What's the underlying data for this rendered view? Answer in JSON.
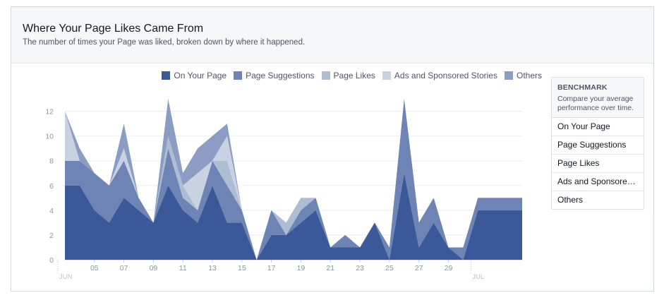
{
  "header": {
    "title": "Where Your Page Likes Came From",
    "subtitle": "The number of times your Page was liked, broken down by where it happened."
  },
  "legend": [
    {
      "label": "On Your Page",
      "color": "#3b5998"
    },
    {
      "label": "Page Suggestions",
      "color": "#6d84b4"
    },
    {
      "label": "Page Likes",
      "color": "#afbdd4"
    },
    {
      "label": "Ads and Sponsored Stories",
      "color": "#c9d2e3"
    },
    {
      "label": "Others",
      "color": "#8b9dc3"
    }
  ],
  "benchmark": {
    "title": "BENCHMARK",
    "description": "Compare your average performance over time.",
    "items": [
      "On Your Page",
      "Page Suggestions",
      "Page Likes",
      "Ads and Sponsored Stories",
      "Others"
    ]
  },
  "chart_data": {
    "type": "area",
    "stacked": true,
    "x": [
      "Jun 3",
      "Jun 4",
      "Jun 5",
      "Jun 6",
      "Jun 7",
      "Jun 8",
      "Jun 9",
      "Jun 10",
      "Jun 11",
      "Jun 12",
      "Jun 13",
      "Jun 14",
      "Jun 15",
      "Jun 16",
      "Jun 17",
      "Jun 18",
      "Jun 19",
      "Jun 20",
      "Jun 21",
      "Jun 22",
      "Jun 23",
      "Jun 24",
      "Jun 25",
      "Jun 26",
      "Jun 27",
      "Jun 28",
      "Jun 29",
      "Jun 30",
      "Jul 1",
      "Jul 2",
      "Jul 3",
      "Jul 4"
    ],
    "x_tick_labels": [
      {
        "label": "05",
        "index": 2
      },
      {
        "label": "07",
        "index": 4
      },
      {
        "label": "09",
        "index": 6
      },
      {
        "label": "11",
        "index": 8
      },
      {
        "label": "13",
        "index": 10
      },
      {
        "label": "15",
        "index": 12
      },
      {
        "label": "17",
        "index": 14
      },
      {
        "label": "19",
        "index": 16
      },
      {
        "label": "21",
        "index": 18
      },
      {
        "label": "23",
        "index": 20
      },
      {
        "label": "25",
        "index": 22
      },
      {
        "label": "27",
        "index": 24
      },
      {
        "label": "29",
        "index": 26
      }
    ],
    "month_labels": [
      {
        "label": "JUN",
        "index": 0
      },
      {
        "label": "JUL",
        "index": 28
      }
    ],
    "y_ticks": [
      0,
      2,
      4,
      6,
      8,
      10,
      12
    ],
    "ylim": [
      0,
      13
    ],
    "grid": true,
    "legend_position": "top-right",
    "series": [
      {
        "name": "On Your Page",
        "values": [
          6,
          6,
          4,
          3,
          5,
          4,
          3,
          6,
          4,
          3,
          6,
          3,
          3,
          0,
          2,
          2,
          3,
          4,
          1,
          1,
          1,
          3,
          0,
          7,
          1,
          3,
          1,
          0,
          4,
          4,
          4,
          4
        ]
      },
      {
        "name": "Page Suggestions",
        "values": [
          2,
          2,
          3,
          3,
          3,
          1,
          0,
          3,
          1,
          1,
          2,
          3,
          1,
          0,
          2,
          0,
          1,
          1,
          0,
          1,
          0,
          0,
          1,
          6,
          2,
          2,
          0,
          1,
          1,
          1,
          1,
          1
        ]
      },
      {
        "name": "Page Likes",
        "values": [
          0,
          0,
          0,
          0,
          0,
          0,
          0,
          1,
          1,
          0,
          0,
          2,
          0,
          0,
          0,
          1,
          1,
          0,
          0,
          0,
          0,
          0,
          0,
          0,
          0,
          0,
          0,
          0,
          0,
          0,
          0,
          0
        ]
      },
      {
        "name": "Ads and Sponsored Stories",
        "values": [
          4,
          0,
          0,
          0,
          1,
          0,
          0,
          0,
          0,
          3,
          0,
          2,
          0,
          0,
          0,
          0,
          0,
          0,
          0,
          0,
          0,
          0,
          0,
          0,
          0,
          0,
          0,
          0,
          0,
          0,
          0,
          0
        ]
      },
      {
        "name": "Others",
        "values": [
          0,
          1,
          0,
          0,
          2,
          0,
          0,
          3,
          1,
          2,
          2,
          1,
          0,
          0,
          0,
          0,
          0,
          0,
          0,
          0,
          0,
          0,
          0,
          0,
          0,
          0,
          0,
          0,
          0,
          0,
          0,
          0
        ]
      }
    ]
  }
}
